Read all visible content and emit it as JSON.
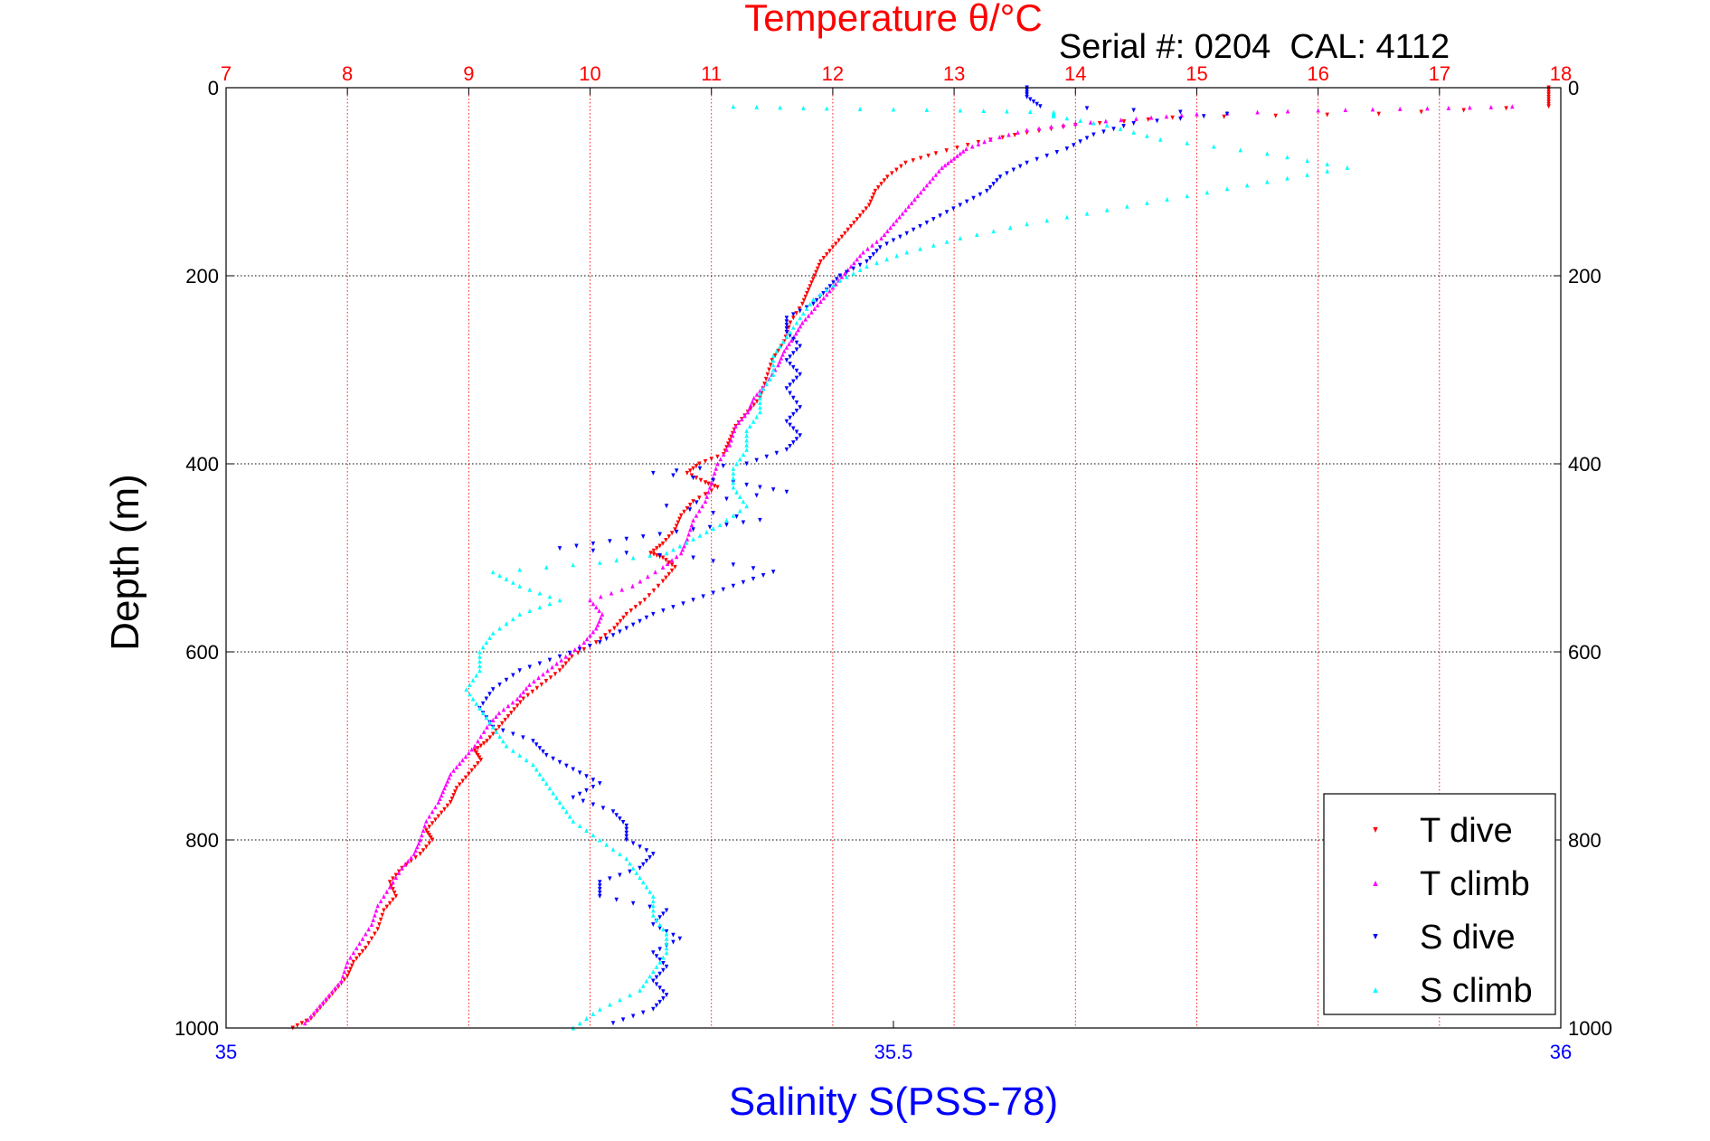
{
  "chart_data": {
    "type": "scatter",
    "title": "Temperature θ/°C",
    "annotation": "Serial #: 0204  CAL: 4112",
    "ylabel": "Depth (m)",
    "xlabel": "Salinity S(PSS-78)",
    "depth_axis": {
      "range": [
        0,
        1000
      ],
      "reversed": true,
      "ticks": [
        0,
        200,
        400,
        600,
        800,
        1000
      ],
      "tick_labels": [
        "0",
        "200",
        "400",
        "600",
        "800",
        "1000"
      ],
      "grid": true,
      "grid_color": "#000000"
    },
    "temperature_axis": {
      "position": "top",
      "range": [
        7,
        18
      ],
      "ticks": [
        7,
        8,
        9,
        10,
        11,
        12,
        13,
        14,
        15,
        16,
        17,
        18
      ],
      "tick_labels": [
        "7",
        "8",
        "9",
        "10",
        "11",
        "12",
        "13",
        "14",
        "15",
        "16",
        "17",
        "18"
      ],
      "grid": true,
      "color": "#ff0000"
    },
    "salinity_axis": {
      "position": "bottom",
      "range": [
        35,
        36
      ],
      "ticks": [
        35,
        35.5,
        36
      ],
      "tick_labels": [
        "35",
        "35.5",
        "36"
      ],
      "color": "#0000ff"
    },
    "legend": {
      "placement": "bottom-right",
      "entries": [
        "T dive",
        "T climb",
        "S dive",
        "S climb"
      ]
    },
    "series": [
      {
        "name": "T dive",
        "axis": "temperature",
        "marker": "down-triangle",
        "color": "#ff0000",
        "points": [
          [
            17.9,
            0
          ],
          [
            17.9,
            10
          ],
          [
            17.9,
            20
          ],
          [
            16.5,
            28
          ],
          [
            14.8,
            32
          ],
          [
            14.0,
            40
          ],
          [
            13.6,
            48
          ],
          [
            13.2,
            58
          ],
          [
            12.85,
            70
          ],
          [
            12.6,
            80
          ],
          [
            12.45,
            95
          ],
          [
            12.35,
            110
          ],
          [
            12.3,
            125
          ],
          [
            12.2,
            140
          ],
          [
            12.1,
            155
          ],
          [
            12.0,
            170
          ],
          [
            11.9,
            185
          ],
          [
            11.85,
            200
          ],
          [
            11.8,
            215
          ],
          [
            11.75,
            230
          ],
          [
            11.65,
            250
          ],
          [
            11.6,
            270
          ],
          [
            11.5,
            290
          ],
          [
            11.45,
            310
          ],
          [
            11.4,
            330
          ],
          [
            11.3,
            345
          ],
          [
            11.2,
            360
          ],
          [
            11.15,
            375
          ],
          [
            11.1,
            390
          ],
          [
            10.9,
            400
          ],
          [
            10.8,
            410
          ],
          [
            10.95,
            420
          ],
          [
            11.05,
            425
          ],
          [
            10.85,
            440
          ],
          [
            10.75,
            455
          ],
          [
            10.7,
            470
          ],
          [
            10.6,
            485
          ],
          [
            10.5,
            495
          ],
          [
            10.6,
            500
          ],
          [
            10.7,
            510
          ],
          [
            10.6,
            525
          ],
          [
            10.45,
            545
          ],
          [
            10.3,
            560
          ],
          [
            10.2,
            575
          ],
          [
            10.05,
            590
          ],
          [
            9.85,
            605
          ],
          [
            9.75,
            620
          ],
          [
            9.6,
            635
          ],
          [
            9.45,
            650
          ],
          [
            9.35,
            665
          ],
          [
            9.25,
            680
          ],
          [
            9.15,
            695
          ],
          [
            9.05,
            705
          ],
          [
            9.1,
            715
          ],
          [
            9.0,
            730
          ],
          [
            8.9,
            745
          ],
          [
            8.85,
            760
          ],
          [
            8.75,
            775
          ],
          [
            8.65,
            790
          ],
          [
            8.7,
            800
          ],
          [
            8.6,
            815
          ],
          [
            8.45,
            830
          ],
          [
            8.35,
            845
          ],
          [
            8.4,
            860
          ],
          [
            8.3,
            875
          ],
          [
            8.25,
            895
          ],
          [
            8.15,
            915
          ],
          [
            8.05,
            930
          ],
          [
            8.0,
            945
          ],
          [
            7.9,
            960
          ],
          [
            7.8,
            975
          ],
          [
            7.7,
            990
          ],
          [
            7.55,
            1000
          ]
        ]
      },
      {
        "name": "T climb",
        "axis": "temperature",
        "marker": "up-triangle",
        "color": "#ff00ff",
        "points": [
          [
            17.6,
            20
          ],
          [
            16.9,
            22
          ],
          [
            16.0,
            24
          ],
          [
            15.0,
            28
          ],
          [
            14.5,
            33
          ],
          [
            14.0,
            38
          ],
          [
            13.6,
            45
          ],
          [
            13.3,
            55
          ],
          [
            13.1,
            65
          ],
          [
            13.0,
            75
          ],
          [
            12.9,
            85
          ],
          [
            12.8,
            100
          ],
          [
            12.7,
            115
          ],
          [
            12.6,
            130
          ],
          [
            12.5,
            145
          ],
          [
            12.4,
            160
          ],
          [
            12.25,
            175
          ],
          [
            12.15,
            190
          ],
          [
            12.05,
            205
          ],
          [
            11.95,
            220
          ],
          [
            11.85,
            235
          ],
          [
            11.75,
            250
          ],
          [
            11.68,
            265
          ],
          [
            11.6,
            280
          ],
          [
            11.55,
            295
          ],
          [
            11.45,
            315
          ],
          [
            11.35,
            330
          ],
          [
            11.3,
            345
          ],
          [
            11.2,
            360
          ],
          [
            11.15,
            380
          ],
          [
            11.05,
            400
          ],
          [
            11.0,
            420
          ],
          [
            10.95,
            440
          ],
          [
            10.85,
            460
          ],
          [
            10.8,
            480
          ],
          [
            10.75,
            495
          ],
          [
            10.6,
            510
          ],
          [
            10.35,
            530
          ],
          [
            10.0,
            545
          ],
          [
            10.1,
            560
          ],
          [
            10.05,
            575
          ],
          [
            9.95,
            590
          ],
          [
            9.8,
            605
          ],
          [
            9.65,
            620
          ],
          [
            9.5,
            635
          ],
          [
            9.4,
            650
          ],
          [
            9.25,
            665
          ],
          [
            9.15,
            680
          ],
          [
            9.05,
            700
          ],
          [
            8.95,
            715
          ],
          [
            8.85,
            730
          ],
          [
            8.8,
            745
          ],
          [
            8.75,
            760
          ],
          [
            8.65,
            780
          ],
          [
            8.6,
            800
          ],
          [
            8.55,
            815
          ],
          [
            8.45,
            830
          ],
          [
            8.35,
            850
          ],
          [
            8.25,
            870
          ],
          [
            8.2,
            890
          ],
          [
            8.1,
            910
          ],
          [
            8.0,
            930
          ],
          [
            7.95,
            950
          ],
          [
            7.85,
            965
          ],
          [
            7.75,
            980
          ],
          [
            7.65,
            995
          ]
        ]
      },
      {
        "name": "S dive",
        "axis": "salinity",
        "marker": "down-triangle",
        "color": "#0000ff",
        "points": [
          [
            35.6,
            0
          ],
          [
            35.6,
            10
          ],
          [
            35.61,
            20
          ],
          [
            35.75,
            28
          ],
          [
            35.68,
            38
          ],
          [
            35.65,
            50
          ],
          [
            35.63,
            65
          ],
          [
            35.6,
            80
          ],
          [
            35.58,
            95
          ],
          [
            35.57,
            110
          ],
          [
            35.55,
            125
          ],
          [
            35.53,
            140
          ],
          [
            35.51,
            155
          ],
          [
            35.49,
            170
          ],
          [
            35.48,
            185
          ],
          [
            35.46,
            200
          ],
          [
            35.45,
            215
          ],
          [
            35.44,
            230
          ],
          [
            35.42,
            245
          ],
          [
            35.42,
            260
          ],
          [
            35.43,
            275
          ],
          [
            35.42,
            290
          ],
          [
            35.43,
            305
          ],
          [
            35.42,
            320
          ],
          [
            35.43,
            340
          ],
          [
            35.42,
            355
          ],
          [
            35.43,
            370
          ],
          [
            35.42,
            385
          ],
          [
            35.39,
            400
          ],
          [
            35.32,
            410
          ],
          [
            35.38,
            420
          ],
          [
            35.42,
            430
          ],
          [
            35.33,
            445
          ],
          [
            35.4,
            460
          ],
          [
            35.35,
            470
          ],
          [
            35.3,
            480
          ],
          [
            35.25,
            490
          ],
          [
            35.35,
            500
          ],
          [
            35.41,
            515
          ],
          [
            35.38,
            530
          ],
          [
            35.35,
            545
          ],
          [
            35.32,
            560
          ],
          [
            35.3,
            575
          ],
          [
            35.28,
            590
          ],
          [
            35.25,
            605
          ],
          [
            35.22,
            620
          ],
          [
            35.2,
            640
          ],
          [
            35.19,
            660
          ],
          [
            35.2,
            680
          ],
          [
            35.23,
            695
          ],
          [
            35.24,
            710
          ],
          [
            35.26,
            725
          ],
          [
            35.28,
            740
          ],
          [
            35.26,
            755
          ],
          [
            35.29,
            770
          ],
          [
            35.3,
            785
          ],
          [
            35.3,
            800
          ],
          [
            35.32,
            815
          ],
          [
            35.31,
            830
          ],
          [
            35.28,
            845
          ],
          [
            35.28,
            860
          ],
          [
            35.33,
            875
          ],
          [
            35.32,
            890
          ],
          [
            35.34,
            905
          ],
          [
            35.32,
            920
          ],
          [
            35.33,
            935
          ],
          [
            35.32,
            950
          ],
          [
            35.33,
            965
          ],
          [
            35.32,
            980
          ],
          [
            35.29,
            995
          ]
        ]
      },
      {
        "name": "S climb",
        "axis": "salinity",
        "marker": "up-triangle",
        "color": "#00ffff",
        "points": [
          [
            35.38,
            20
          ],
          [
            35.45,
            22
          ],
          [
            35.55,
            24
          ],
          [
            35.62,
            26
          ],
          [
            35.62,
            30
          ],
          [
            35.66,
            40
          ],
          [
            35.7,
            55
          ],
          [
            35.78,
            70
          ],
          [
            35.84,
            85
          ],
          [
            35.78,
            100
          ],
          [
            35.72,
            115
          ],
          [
            35.66,
            130
          ],
          [
            35.6,
            145
          ],
          [
            35.55,
            160
          ],
          [
            35.51,
            175
          ],
          [
            35.48,
            190
          ],
          [
            35.46,
            205
          ],
          [
            35.44,
            225
          ],
          [
            35.43,
            245
          ],
          [
            35.42,
            265
          ],
          [
            35.41,
            285
          ],
          [
            35.41,
            305
          ],
          [
            35.4,
            325
          ],
          [
            35.4,
            345
          ],
          [
            35.39,
            365
          ],
          [
            35.39,
            385
          ],
          [
            35.38,
            405
          ],
          [
            35.38,
            425
          ],
          [
            35.39,
            445
          ],
          [
            35.37,
            465
          ],
          [
            35.35,
            480
          ],
          [
            35.33,
            495
          ],
          [
            35.28,
            505
          ],
          [
            35.2,
            515
          ],
          [
            35.22,
            530
          ],
          [
            35.25,
            545
          ],
          [
            35.22,
            560
          ],
          [
            35.2,
            580
          ],
          [
            35.19,
            600
          ],
          [
            35.19,
            620
          ],
          [
            35.18,
            640
          ],
          [
            35.19,
            660
          ],
          [
            35.2,
            680
          ],
          [
            35.21,
            700
          ],
          [
            35.23,
            720
          ],
          [
            35.24,
            740
          ],
          [
            35.25,
            760
          ],
          [
            35.26,
            780
          ],
          [
            35.28,
            800
          ],
          [
            35.3,
            820
          ],
          [
            35.31,
            840
          ],
          [
            35.32,
            860
          ],
          [
            35.32,
            880
          ],
          [
            35.33,
            900
          ],
          [
            35.33,
            920
          ],
          [
            35.32,
            940
          ],
          [
            35.31,
            960
          ],
          [
            35.28,
            980
          ],
          [
            35.26,
            1000
          ]
        ]
      }
    ]
  }
}
